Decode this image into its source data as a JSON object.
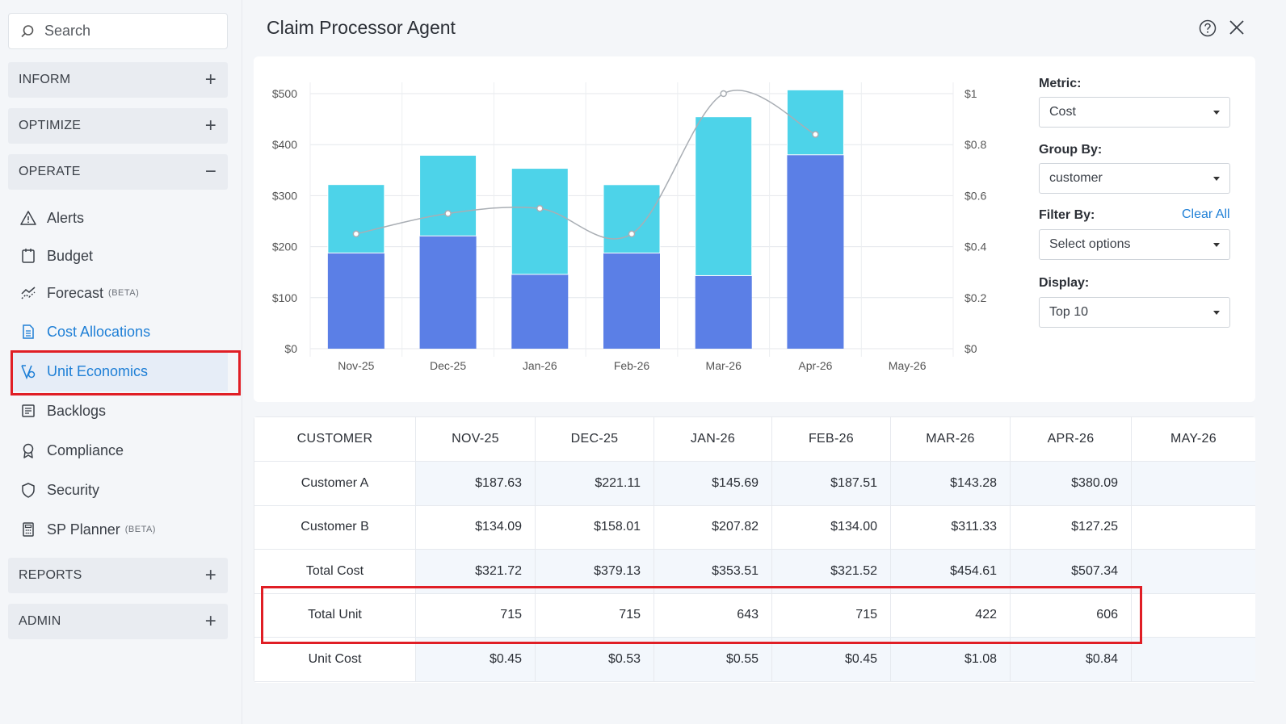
{
  "sidebar": {
    "search_placeholder": "Search",
    "sections": {
      "inform": "INFORM",
      "optimize": "OPTIMIZE",
      "operate": "OPERATE",
      "reports": "REPORTS",
      "admin": "ADMIN"
    },
    "items": {
      "alerts": "Alerts",
      "budget": "Budget",
      "forecast": "Forecast",
      "forecast_badge": "(BETA)",
      "cost_allocations": "Cost Allocations",
      "unit_economics": "Unit Economics",
      "backlogs": "Backlogs",
      "compliance": "Compliance",
      "security": "Security",
      "sp_planner": "SP Planner",
      "sp_planner_badge": "(BETA)"
    }
  },
  "header": {
    "title": "Claim Processor Agent"
  },
  "controls": {
    "metric_label": "Metric:",
    "metric_value": "Cost",
    "group_label": "Group By:",
    "group_value": "customer",
    "filter_label": "Filter By:",
    "filter_clear": "Clear All",
    "filter_value": "Select options",
    "display_label": "Display:",
    "display_value": "Top 10"
  },
  "colors": {
    "customer_a": "#5b7fe6",
    "customer_b": "#4dd3e9",
    "line": "#a9aeb4",
    "accent": "#1e7fd6",
    "highlight": "#e01e25"
  },
  "chart_data": {
    "type": "bar",
    "stacked": true,
    "categories": [
      "Nov-25",
      "Dec-25",
      "Jan-26",
      "Feb-26",
      "Mar-26",
      "Apr-26",
      "May-26"
    ],
    "series": [
      {
        "name": "Customer A",
        "values": [
          187.63,
          221.11,
          145.69,
          187.51,
          143.28,
          380.09,
          null
        ]
      },
      {
        "name": "Customer B",
        "values": [
          134.09,
          158.01,
          207.82,
          134.0,
          311.33,
          127.25,
          null
        ]
      }
    ],
    "line_series": {
      "name": "Unit Cost",
      "axis": "right",
      "values": [
        0.45,
        0.53,
        0.55,
        0.45,
        1.08,
        0.84,
        null
      ]
    },
    "y_left": {
      "ticks": [
        "$0",
        "$100",
        "$200",
        "$300",
        "$400",
        "$500"
      ],
      "lim": [
        0,
        500
      ]
    },
    "y_right": {
      "ticks": [
        "$0",
        "$0.2",
        "$0.4",
        "$0.6",
        "$0.8",
        "$1"
      ],
      "lim": [
        0,
        1
      ]
    },
    "grid": true
  },
  "table": {
    "headers": [
      "CUSTOMER",
      "NOV-25",
      "DEC-25",
      "JAN-26",
      "FEB-26",
      "MAR-26",
      "APR-26",
      "MAY-26"
    ],
    "rows": [
      {
        "label": "Customer A",
        "values": [
          "$187.63",
          "$221.11",
          "$145.69",
          "$187.51",
          "$143.28",
          "$380.09",
          ""
        ]
      },
      {
        "label": "Customer B",
        "values": [
          "$134.09",
          "$158.01",
          "$207.82",
          "$134.00",
          "$311.33",
          "$127.25",
          ""
        ]
      },
      {
        "label": "Total Cost",
        "values": [
          "$321.72",
          "$379.13",
          "$353.51",
          "$321.52",
          "$454.61",
          "$507.34",
          ""
        ]
      },
      {
        "label": "Total Unit",
        "values": [
          "715",
          "715",
          "643",
          "715",
          "422",
          "606",
          ""
        ]
      },
      {
        "label": "Unit Cost",
        "values": [
          "$0.45",
          "$0.53",
          "$0.55",
          "$0.45",
          "$1.08",
          "$0.84",
          ""
        ]
      }
    ]
  }
}
